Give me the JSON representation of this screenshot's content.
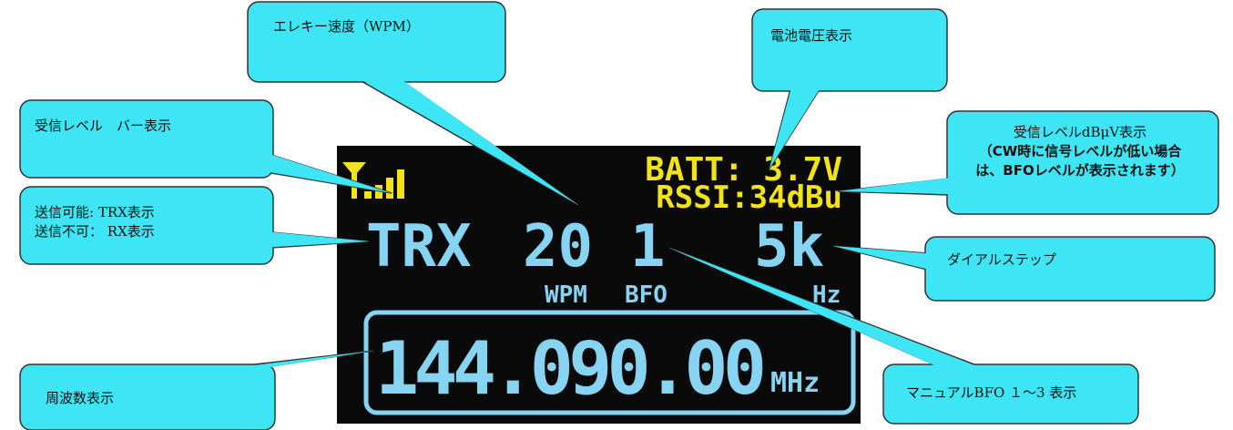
{
  "callouts": [
    {
      "lines": [
        "エレキー速度（WPM）"
      ]
    },
    {
      "lines": [
        "電池電圧表示"
      ]
    },
    {
      "lines": [
        "受信レベル　バー表示"
      ]
    },
    {
      "lines": [
        "受信レベルdBμV表示",
        "（CW時に信号レベルが低い場合",
        "は、BFOレベルが表示されます）"
      ]
    },
    {
      "lines": [
        "送信可能: TRX表示",
        "送信不可： RX表示"
      ]
    },
    {
      "lines": [
        "ダイアルステップ"
      ]
    },
    {
      "lines": [
        "周波数表示"
      ]
    },
    {
      "lines": [
        "マニュアルBFO １～3 表示"
      ]
    }
  ],
  "display": {
    "batt": "BATT: 3.7V",
    "rssi": "RSSI:34dBu",
    "mode": "TRX",
    "wpm_value": "20",
    "bfo_value": "1",
    "step": "5k",
    "wpm_label": "WPM",
    "bfo_label": "BFO",
    "step_unit": "Hz",
    "frequency": "144.090.00",
    "frequency_unit": "MHz"
  }
}
